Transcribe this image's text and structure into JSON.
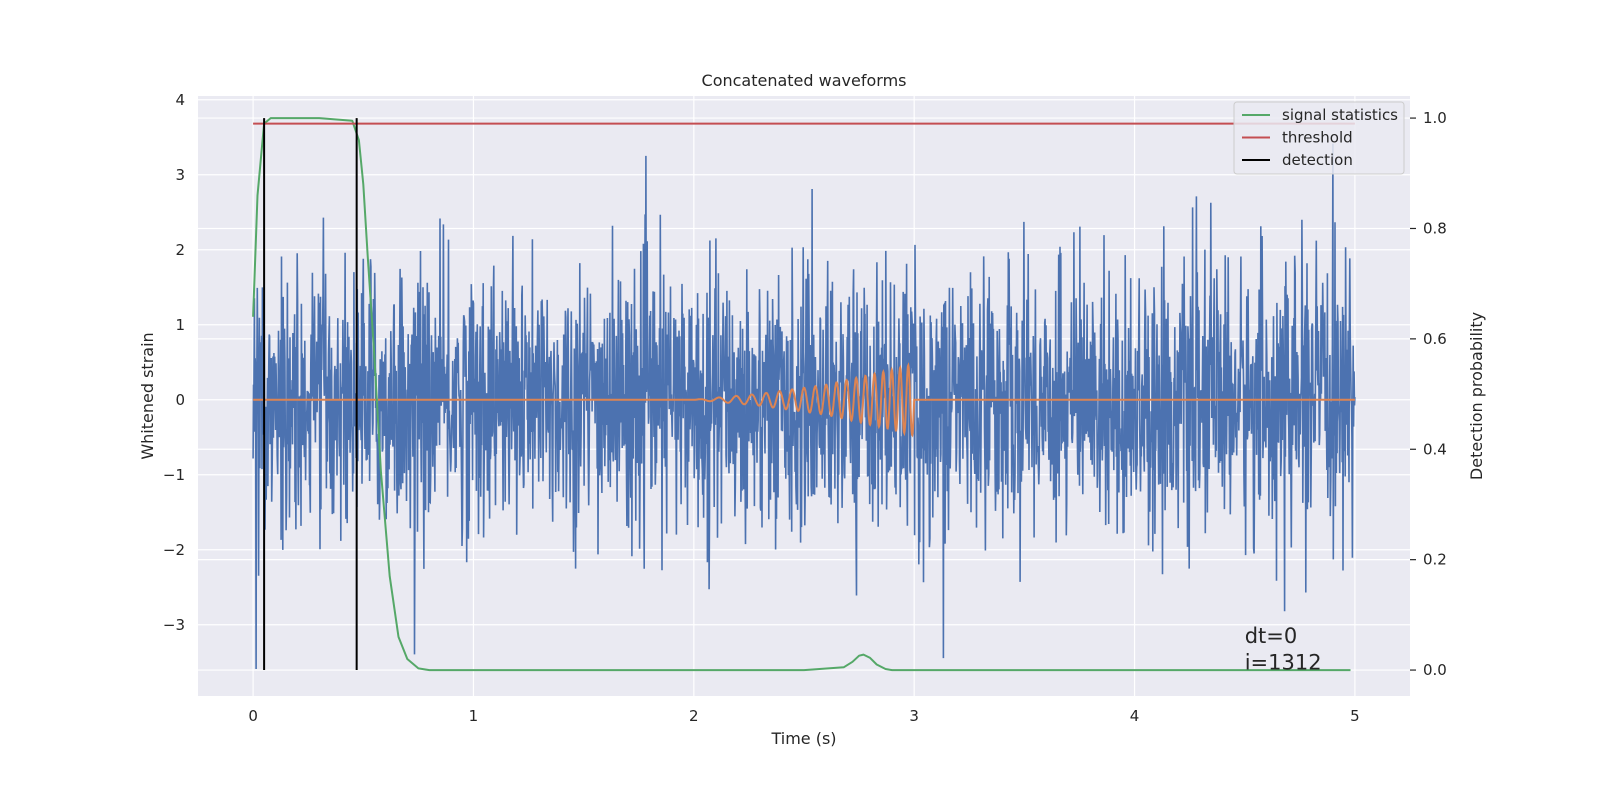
{
  "chart_data": {
    "type": "line",
    "title": "Concatenated waveforms",
    "xlabel": "Time (s)",
    "ylabel": "Whitened strain",
    "y2label": "Detection probability",
    "xlim": [
      -0.25,
      5.25
    ],
    "ylim": [
      -3.95,
      4.05
    ],
    "y2lim": [
      -0.047,
      1.04
    ],
    "xticks": [
      0,
      1,
      2,
      3,
      4,
      5
    ],
    "xtick_labels": [
      "0",
      "1",
      "2",
      "3",
      "4",
      "5"
    ],
    "yticks": [
      -3,
      -2,
      -1,
      0,
      1,
      2,
      3,
      4
    ],
    "ytick_labels": [
      "−3",
      "−2",
      "−1",
      "0",
      "1",
      "2",
      "3",
      "4"
    ],
    "y2ticks": [
      0.0,
      0.2,
      0.4,
      0.6,
      0.8,
      1.0
    ],
    "y2tick_labels": [
      "0.0",
      "0.2",
      "0.4",
      "0.6",
      "0.8",
      "1.0"
    ],
    "grid": true,
    "legend": {
      "placement": "top-right",
      "entries": [
        {
          "label": "signal statistics",
          "color": "#55a868"
        },
        {
          "label": "threshold",
          "color": "#c44e52"
        },
        {
          "label": "detection",
          "color": "#000000"
        }
      ]
    },
    "series": [
      {
        "kind": "noise",
        "color": "#4c72b0",
        "x_range": [
          0,
          5
        ],
        "approx_peak_positive": 3.7,
        "approx_peak_negative": -3.6
      },
      {
        "kind": "chirp",
        "color": "#dd8452",
        "x": [
          0,
          2.0,
          2.3,
          2.6,
          2.9,
          3.0,
          3.0,
          5.0
        ],
        "y": [
          0,
          0,
          0.08,
          0.2,
          0.4,
          0.48,
          0,
          0
        ]
      },
      {
        "name": "signal statistics",
        "axis": "right",
        "color": "#55a868",
        "x": [
          0.0,
          0.02,
          0.05,
          0.08,
          0.1,
          0.3,
          0.45,
          0.48,
          0.5,
          0.52,
          0.55,
          0.58,
          0.62,
          0.66,
          0.7,
          0.75,
          0.8,
          2.5,
          2.68,
          2.72,
          2.75,
          2.77,
          2.8,
          2.83,
          2.87,
          2.9,
          4.98
        ],
        "y": [
          0.64,
          0.86,
          0.99,
          1.0,
          1.0,
          1.0,
          0.995,
          0.96,
          0.88,
          0.75,
          0.57,
          0.36,
          0.17,
          0.06,
          0.02,
          0.003,
          0.0,
          0.0,
          0.005,
          0.015,
          0.026,
          0.028,
          0.022,
          0.01,
          0.002,
          0.0,
          0.0
        ]
      },
      {
        "name": "threshold",
        "axis": "right",
        "color": "#c44e52",
        "x": [
          0,
          5
        ],
        "y": [
          0.99,
          0.99
        ]
      },
      {
        "name": "detection",
        "axis": "right",
        "color": "#000000",
        "vlines_x": [
          0.05,
          0.47
        ],
        "ymin": 0,
        "ymax": 1.0
      }
    ],
    "annotations": [
      "dt=0",
      "i=1312"
    ]
  }
}
